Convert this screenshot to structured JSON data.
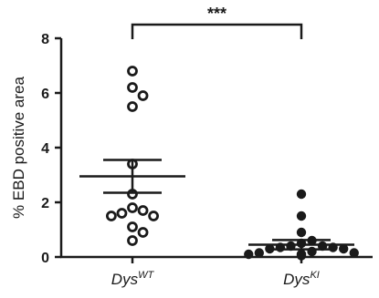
{
  "chart_data": {
    "type": "scatter",
    "subtype": "dot-plot",
    "categories": [
      {
        "base": "Dys",
        "sup": "WT"
      },
      {
        "base": "Dys",
        "sup": "KI"
      }
    ],
    "ylabel": "% EBD positive area",
    "ylim": [
      0,
      8
    ],
    "yticks": [
      "0",
      "2",
      "4",
      "6",
      "8"
    ],
    "series": [
      {
        "category": 0,
        "marker": "open-circle",
        "values": [
          6.8,
          6.2,
          5.9,
          5.5,
          3.4,
          2.3,
          1.8,
          1.7,
          1.6,
          1.5,
          1.5,
          1.1,
          0.9,
          0.6
        ],
        "mean": 2.95,
        "sem_upper": 3.55,
        "sem_lower": 2.35
      },
      {
        "category": 1,
        "marker": "filled-circle",
        "values": [
          2.3,
          1.5,
          0.9,
          0.6,
          0.5,
          0.4,
          0.4,
          0.35,
          0.35,
          0.3,
          0.3,
          0.2,
          0.15,
          0.15,
          0.1,
          0.1,
          0.1,
          0.05
        ],
        "mean": 0.45,
        "sem_upper": 0.62,
        "sem_lower": 0.28
      }
    ],
    "significance": {
      "label": "***",
      "between": [
        0,
        1
      ]
    },
    "grid": false,
    "colors": {
      "ink": "#1a1a1a",
      "background": "#ffffff"
    }
  }
}
